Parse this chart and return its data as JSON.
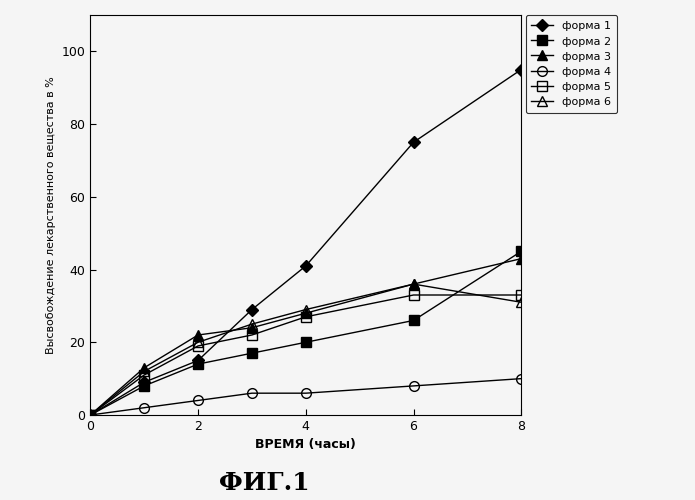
{
  "time": [
    0,
    1,
    2,
    3,
    4,
    6,
    8
  ],
  "forma1": [
    0,
    9,
    15,
    29,
    41,
    75,
    95
  ],
  "forma2": [
    0,
    8,
    14,
    17,
    20,
    26,
    45
  ],
  "forma3": [
    0,
    13,
    22,
    24,
    28,
    36,
    43
  ],
  "forma4": [
    0,
    2,
    4,
    6,
    6,
    8,
    10
  ],
  "forma5": [
    0,
    11,
    19,
    22,
    27,
    33,
    33
  ],
  "forma6": [
    0,
    12,
    20,
    25,
    29,
    36,
    31
  ],
  "ylabel": "Высвобождение лекарственного вещества в %",
  "xlabel": "ВРЕМЯ (часы)",
  "title_bottom": "ФИГ.1",
  "legend_labels": [
    "форма 1",
    "форма 2",
    "форма 3",
    "форма 4",
    "форма 5",
    "форма 6"
  ],
  "ylim": [
    0,
    110
  ],
  "xlim": [
    0,
    8
  ],
  "yticks": [
    0,
    20,
    40,
    60,
    80,
    100
  ],
  "xticks": [
    0,
    2,
    4,
    6,
    8
  ],
  "color": "#000000",
  "background": "#f5f5f5"
}
